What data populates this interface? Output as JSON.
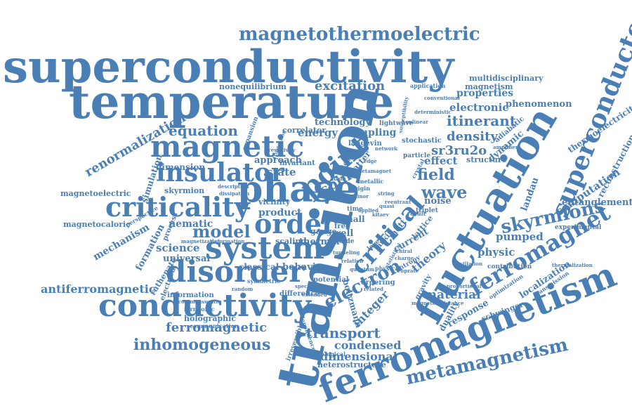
{
  "cloud": {
    "color": "#4a7fb5",
    "words": {
      "superconductivity": "superconductivity",
      "temperature": "temperature",
      "transition": "transition",
      "fluctuation": "fluctuation",
      "ferromagnetism": "ferromagnetism",
      "superconductor": "superconductor",
      "magnetothermoelectric": "magnetothermoelectric",
      "magnetic": "magnetic",
      "phase": "phase",
      "system": "system",
      "disorder": "disorder",
      "conductivity": "conductivity",
      "criticality": "criticality",
      "insulator": "insulator",
      "order": "order",
      "point": "point",
      "critical": "critical",
      "ferromagnet": "ferromagnet",
      "skyrmions": "skyrmions",
      "metamagnetism": "metamagnetism",
      "electron": "electron",
      "model": "model",
      "wave": "wave",
      "field": "field",
      "equation": "equation",
      "excitation": "excitation",
      "inhomogeneous": "inhomogeneous",
      "transport": "transport",
      "ferromagnetic": "ferromagnetic",
      "condensed": "condensed",
      "dimensional": "dimensional",
      "renormalization": "renormalization",
      "itinerant": "itinerant",
      "density": "density",
      "sr3ru2o": "sr3ru2o",
      "effect": "effect",
      "energy": "energy",
      "technology": "technology",
      "spin": "spin",
      "coupling": "coupling",
      "properties": "properties",
      "electronic": "electronic",
      "phenomenon": "phenomenon",
      "multidisciplinary": "multidisciplinary",
      "magnetism": "magnetism",
      "entanglement": "entanglement",
      "computation": "computation",
      "pumped": "pumped",
      "physic": "physic",
      "material": "material",
      "theory": "theory",
      "integer": "integer",
      "antiferromagnetic": "antiferromagnetic",
      "science": "science",
      "universal": "universal",
      "nematic": "nematic",
      "mechanism": "mechanism",
      "formation": "formation",
      "magnetoelectric": "magnetoelectric",
      "magnetocaloric": "magnetocaloric",
      "skyrmion": "skyrmion",
      "dimension": "dimension",
      "simulation": "simulation",
      "nonequilibrium": "nonequilibrium",
      "state": "state",
      "approach": "approach",
      "product": "product",
      "classical": "classical",
      "behavior": "behavior",
      "thermoelectricity": "thermoelectricity",
      "reconstruction": "reconstruction",
      "landau": "landau",
      "dynamic": "dynamic",
      "structure": "structure",
      "localization": "localization",
      "response": "response",
      "duality": "duality",
      "schwinger": "schwinger",
      "current": "current",
      "noise": "noise",
      "boltzmann": "boltzmann",
      "holographic": "holographic",
      "ruthenate": "ruthenate",
      "heterostructure": "heterostructure",
      "thermal": "thermal",
      "scaling": "scaling",
      "vicinity": "vicinity",
      "invariant": "invariant",
      "correlator": "correlator",
      "stochastic": "stochastic",
      "lightwave": "lightwave",
      "langevin": "langevin",
      "matter": "matter",
      "particle": "particle",
      "hall": "hall",
      "time": "time",
      "free": "free",
      "gauge": "gauge",
      "well": "well",
      "potential": "potential",
      "ordering": "ordering",
      "difference": "difference",
      "information": "information",
      "electrical": "electrical",
      "process": "process",
      "adiabatic": "adiabatic",
      "application": "application",
      "contribution": "contribution",
      "experimental": "experimental",
      "transmission": "transmission",
      "optimization": "optimization",
      "gravity": "gravity",
      "expansion": "expansion",
      "perspective": "perspective",
      "fermionic": "fermionic",
      "communication": "communication",
      "topological": "topological",
      "irreversible": "irreversible",
      "dependence": "dependence",
      "mott": "mott",
      "lattice": "lattice",
      "larkin": "larkin",
      "triplet": "triplet",
      "fluide": "fluide",
      "level": "level",
      "result": "result",
      "integral": "integral",
      "symmetric": "symmetric",
      "metallic": "metallic",
      "network": "network",
      "incommensurate": "incommensurate",
      "thermalization": "thermalization",
      "spectrum": "spectrum",
      "metamagnet": "metamagnet",
      "frustration": "frustration",
      "magnetization": "magnetization",
      "reentrant": "reentrant",
      "amplifier": "amplifier",
      "crystal": "crystal",
      "entropy": "entropy",
      "origin": "origin",
      "atom": "atom",
      "spinor": "spinor",
      "resistivity": "resistivity",
      "quasi": "quasi",
      "kitaev": "kitaev",
      "related": "related",
      "conventional": "conventional",
      "deterministic": "deterministic",
      "nonlinear": "nonlinear",
      "proportional": "proportional",
      "oscillation": "oscillation",
      "cuprate": "cuprate",
      "statistical": "statistical",
      "extended": "extended",
      "relation": "relation",
      "quantum": "quantum",
      "tunneling": "tunneling",
      "dissipation": "dissipation",
      "description": "description",
      "deformation": "deformation",
      "magnetoresistance": "magnetoresistance",
      "chiral": "chiral",
      "susceptibility": "susceptibility",
      "physical": "physical",
      "charge": "charge",
      "random": "random",
      "string": "string",
      "edge": "edge",
      "applied": "applied"
    }
  }
}
